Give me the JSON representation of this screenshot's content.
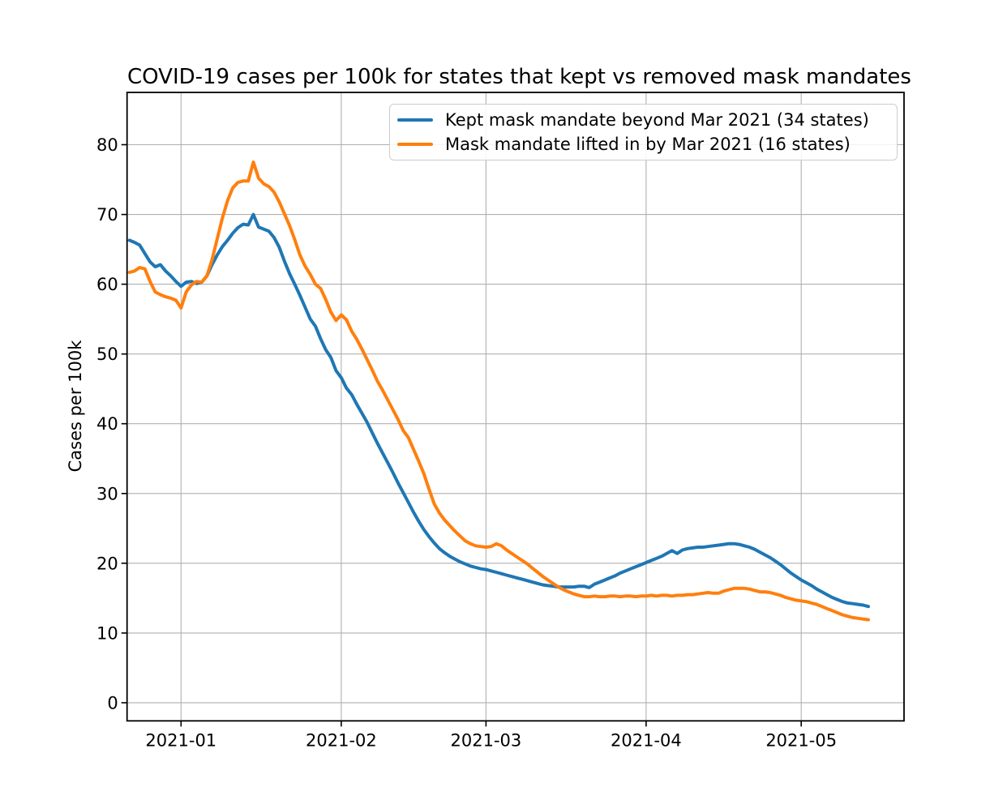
{
  "chart_data": {
    "type": "line",
    "title": "COVID-19 cases per 100k for states that kept vs removed mask mandates",
    "xlabel": "",
    "ylabel": "Cases per 100k",
    "x_tick_dates": [
      "2021-01-01",
      "2021-02-01",
      "2021-03-01",
      "2021-04-01",
      "2021-05-01"
    ],
    "x_tick_labels": [
      "2021-01",
      "2021-02",
      "2021-03",
      "2021-04",
      "2021-05"
    ],
    "y_ticks": [
      0,
      10,
      20,
      30,
      40,
      50,
      60,
      70,
      80
    ],
    "y_tick_labels": [
      "0",
      "10",
      "20",
      "30",
      "40",
      "50",
      "60",
      "70",
      "80"
    ],
    "grid": true,
    "legend_position": "upper right",
    "xlim_day_offsets_from_2021_01_01": [
      -10.45,
      139.9
    ],
    "ylim": [
      -2.6,
      87.5
    ],
    "frequency": "daily",
    "start_date": "2020-12-22",
    "end_date": "2021-05-14",
    "series": [
      {
        "name": "Kept mask mandate beyond Mar 2021 (34 states)",
        "color": "#1f77b4",
        "values": [
          66.3,
          66.0,
          65.6,
          64.4,
          63.2,
          62.5,
          62.8,
          61.9,
          61.2,
          60.4,
          59.7,
          60.3,
          60.4,
          60.1,
          60.3,
          61.2,
          62.8,
          64.2,
          65.4,
          66.3,
          67.3,
          68.1,
          68.6,
          68.5,
          70.0,
          68.2,
          67.9,
          67.6,
          66.7,
          65.3,
          63.3,
          61.5,
          60.0,
          58.4,
          56.7,
          55.0,
          54.0,
          52.2,
          50.6,
          49.5,
          47.6,
          46.6,
          45.1,
          44.2,
          42.8,
          41.5,
          40.2,
          38.7,
          37.2,
          35.8,
          34.4,
          33.0,
          31.5,
          30.1,
          28.7,
          27.3,
          26.0,
          24.8,
          23.8,
          22.9,
          22.1,
          21.5,
          21.0,
          20.6,
          20.2,
          19.9,
          19.6,
          19.4,
          19.2,
          19.1,
          18.9,
          18.7,
          18.5,
          18.3,
          18.1,
          17.9,
          17.7,
          17.5,
          17.3,
          17.1,
          16.9,
          16.8,
          16.7,
          16.6,
          16.6,
          16.6,
          16.6,
          16.7,
          16.7,
          16.5,
          17.0,
          17.3,
          17.6,
          17.9,
          18.2,
          18.6,
          18.9,
          19.2,
          19.5,
          19.8,
          20.1,
          20.4,
          20.7,
          21.0,
          21.4,
          21.8,
          21.4,
          21.9,
          22.1,
          22.2,
          22.3,
          22.3,
          22.4,
          22.5,
          22.6,
          22.7,
          22.8,
          22.8,
          22.7,
          22.5,
          22.3,
          22.0,
          21.6,
          21.2,
          20.8,
          20.3,
          19.8,
          19.2,
          18.6,
          18.1,
          17.6,
          17.2,
          16.8,
          16.3,
          15.9,
          15.5,
          15.1,
          14.8,
          14.5,
          14.3,
          14.2,
          14.1,
          14.0,
          13.8
        ]
      },
      {
        "name": "Mask mandate lifted in by Mar 2021 (16 states)",
        "color": "#ff7f0e",
        "values": [
          61.7,
          61.9,
          62.4,
          62.2,
          60.4,
          58.9,
          58.5,
          58.2,
          58.0,
          57.7,
          56.6,
          58.9,
          59.9,
          60.4,
          60.3,
          61.2,
          63.5,
          66.5,
          69.5,
          72.0,
          73.8,
          74.6,
          74.8,
          74.8,
          77.5,
          75.2,
          74.4,
          74.0,
          73.2,
          71.8,
          70.1,
          68.4,
          66.4,
          64.2,
          62.6,
          61.4,
          60.0,
          59.4,
          57.8,
          56.0,
          54.8,
          55.6,
          54.9,
          53.3,
          52.1,
          50.7,
          49.2,
          47.7,
          46.1,
          44.8,
          43.4,
          42.0,
          40.6,
          39.0,
          38.0,
          36.3,
          34.6,
          32.8,
          30.6,
          28.5,
          27.2,
          26.2,
          25.4,
          24.6,
          23.9,
          23.2,
          22.8,
          22.5,
          22.4,
          22.3,
          22.4,
          22.8,
          22.5,
          21.9,
          21.4,
          20.9,
          20.4,
          19.9,
          19.3,
          18.7,
          18.1,
          17.6,
          17.1,
          16.6,
          16.2,
          15.9,
          15.6,
          15.4,
          15.2,
          15.2,
          15.3,
          15.2,
          15.2,
          15.3,
          15.3,
          15.2,
          15.3,
          15.3,
          15.2,
          15.3,
          15.3,
          15.4,
          15.3,
          15.4,
          15.4,
          15.3,
          15.4,
          15.4,
          15.5,
          15.5,
          15.6,
          15.7,
          15.8,
          15.7,
          15.7,
          16.0,
          16.2,
          16.4,
          16.4,
          16.4,
          16.3,
          16.1,
          15.9,
          15.9,
          15.8,
          15.6,
          15.4,
          15.1,
          14.9,
          14.7,
          14.6,
          14.5,
          14.3,
          14.1,
          13.8,
          13.5,
          13.2,
          12.9,
          12.6,
          12.4,
          12.2,
          12.1,
          12.0,
          11.9
        ]
      }
    ]
  },
  "style": {
    "background": "#ffffff",
    "grid_color": "#b0b0b0",
    "spine_color": "#000000",
    "tick_color": "#000000",
    "text_color": "#000000",
    "legend_border_color": "#cccccc",
    "line_width": 4
  }
}
